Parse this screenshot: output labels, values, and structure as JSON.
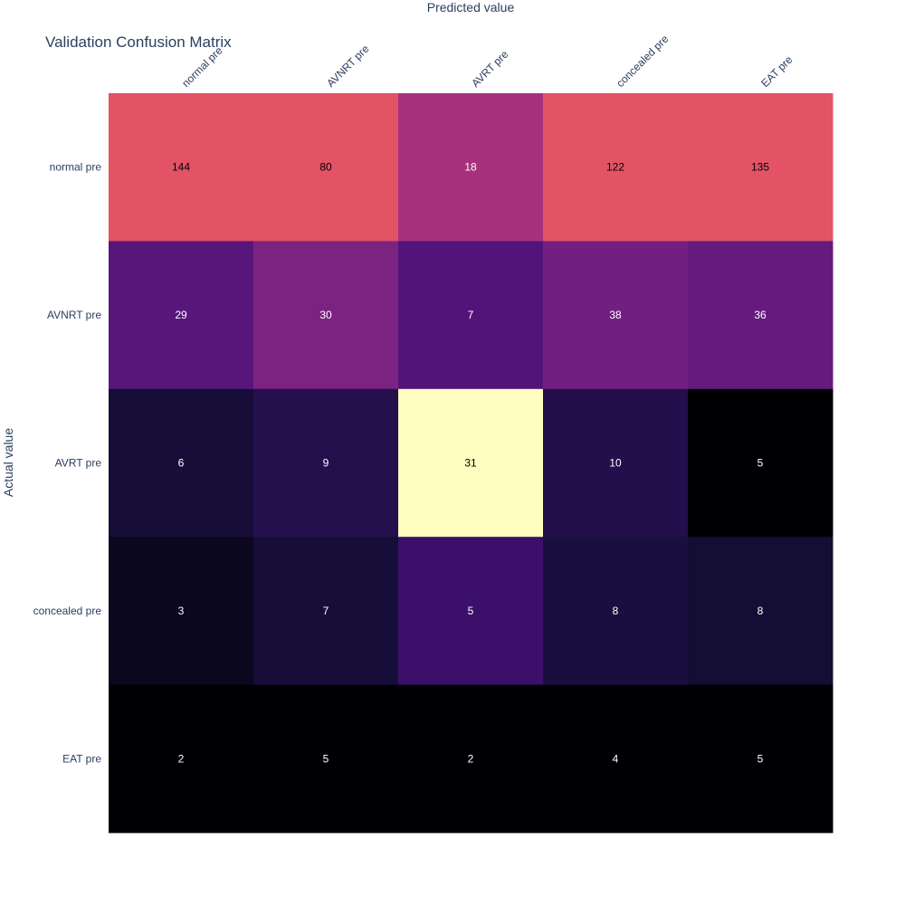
{
  "chart_data": {
    "type": "heatmap",
    "title": "Validation Confusion Matrix",
    "xlabel": "Predicted value",
    "ylabel": "Actual value",
    "x_categories": [
      "normal pre",
      "AVNRT pre",
      "AVRT pre",
      "concealed pre",
      "EAT pre"
    ],
    "y_categories": [
      "normal pre",
      "AVNRT pre",
      "AVRT pre",
      "concealed pre",
      "EAT pre"
    ],
    "values": [
      [
        144,
        80,
        18,
        122,
        135
      ],
      [
        29,
        30,
        7,
        38,
        36
      ],
      [
        6,
        9,
        31,
        10,
        5
      ],
      [
        3,
        7,
        5,
        8,
        8
      ],
      [
        2,
        5,
        2,
        4,
        5
      ]
    ],
    "colormap": "magma",
    "x_axis_position": "top",
    "grid": false,
    "legend": "none"
  }
}
